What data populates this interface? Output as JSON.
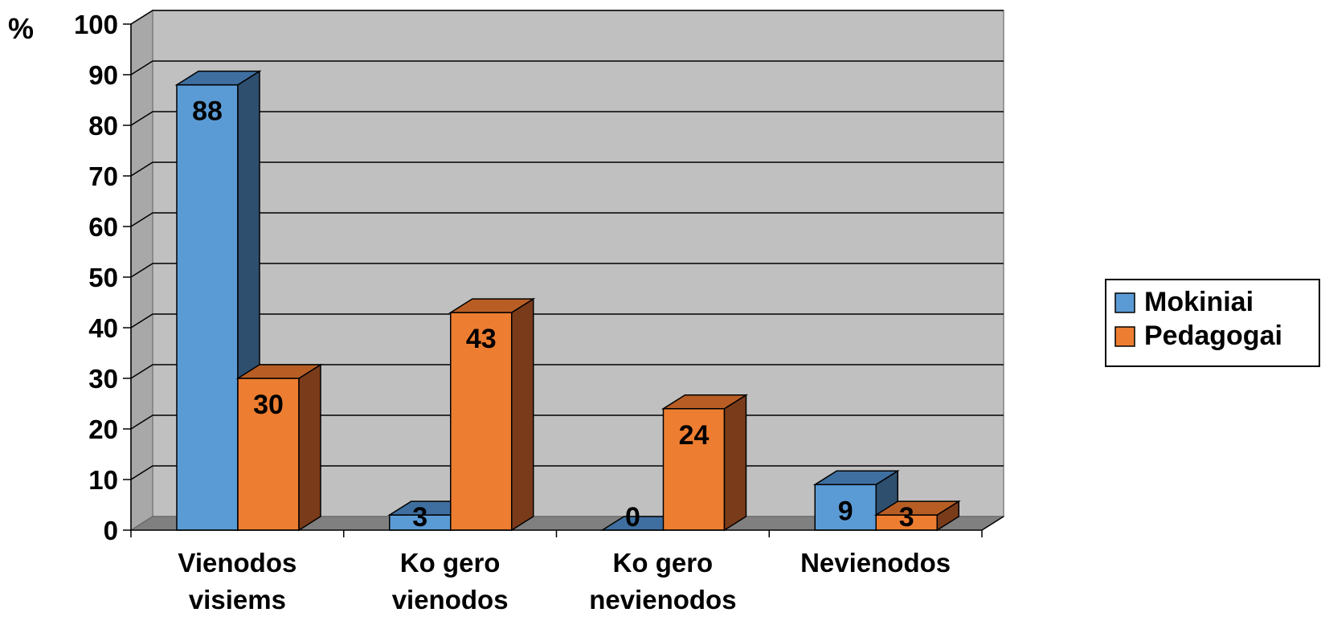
{
  "chart_data": {
    "type": "bar",
    "y_unit_label": "%",
    "categories": [
      [
        "Vienodos",
        "visiems"
      ],
      [
        "Ko gero",
        "vienodos"
      ],
      [
        "Ko gero",
        "nevienodos"
      ],
      [
        "Nevienodos"
      ]
    ],
    "series": [
      {
        "name": "Mokiniai",
        "values": [
          88,
          3,
          0,
          9
        ],
        "color": "#5b9bd5",
        "side_color": "#2f4f6f",
        "top_color": "#3f6fa0"
      },
      {
        "name": "Pedagogai",
        "values": [
          30,
          43,
          24,
          3
        ],
        "color": "#ed7d31",
        "side_color": "#7a3b1a",
        "top_color": "#b85e25"
      }
    ],
    "ylim": [
      0,
      100
    ],
    "yticks": [
      0,
      10,
      20,
      30,
      40,
      50,
      60,
      70,
      80,
      90,
      100
    ],
    "grid": true,
    "plot_background": "#c0c0c0",
    "floor_color": "#808080",
    "legend_position": "right"
  }
}
